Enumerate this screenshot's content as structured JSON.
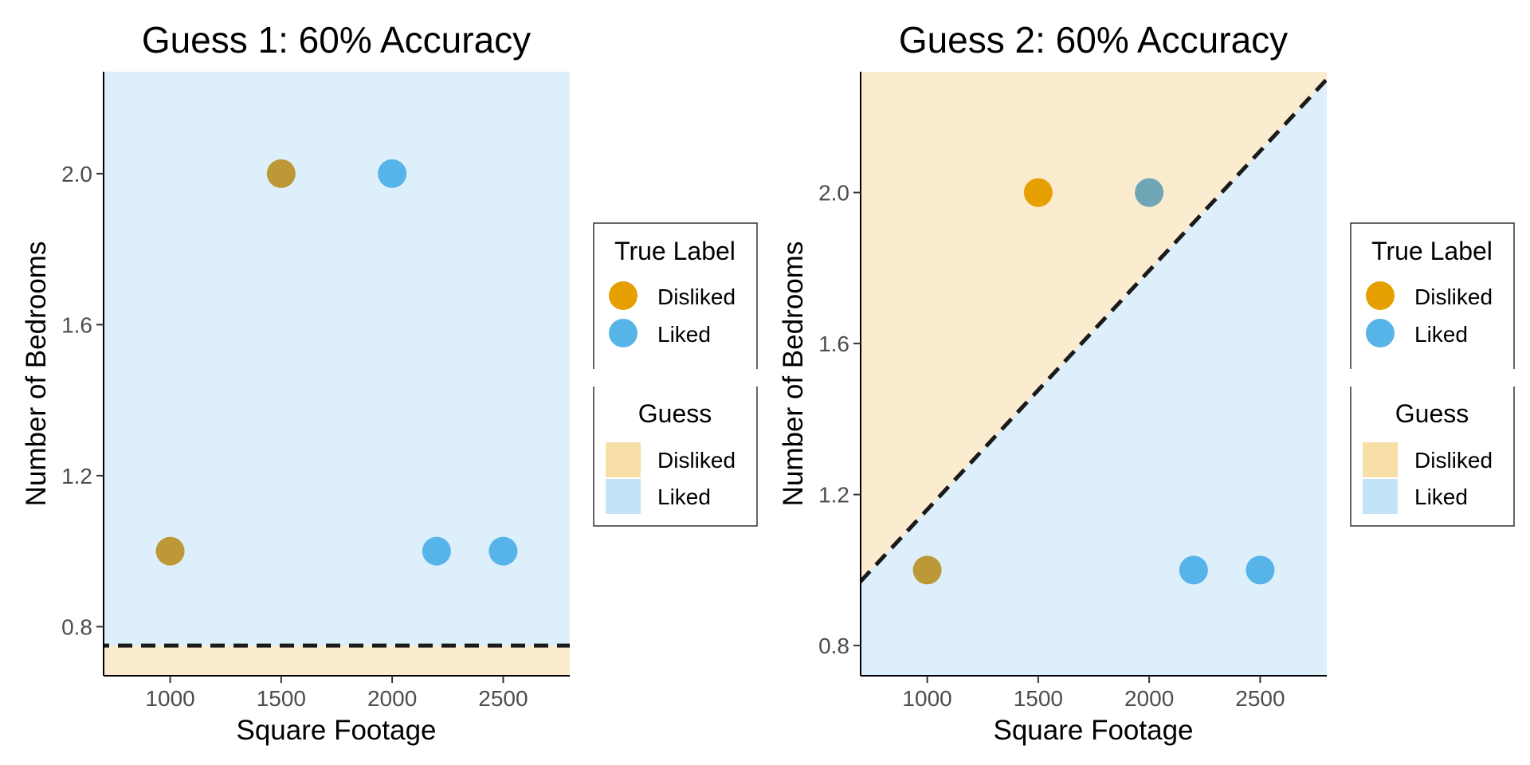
{
  "chart_data": [
    {
      "type": "scatter",
      "title": "Guess 1: 60% Accuracy",
      "xlabel": "Square Footage",
      "ylabel": "Number of Bedrooms",
      "xlim": [
        700,
        2800
      ],
      "ylim": [
        0.67,
        2.27
      ],
      "xticks": [
        1000,
        1500,
        2000,
        2500
      ],
      "yticks": [
        0.8,
        1.2,
        1.6,
        2.0
      ],
      "xtick_labels": [
        "1000",
        "1500",
        "2000",
        "2500"
      ],
      "ytick_labels": [
        "0.8",
        "1.2",
        "1.6",
        "2.0"
      ],
      "grid": false,
      "decision_boundary": {
        "style": "dashed",
        "color": "#1a1a1a",
        "points": [
          [
            700,
            0.75
          ],
          [
            2800,
            0.75
          ]
        ],
        "above_guess": "Liked",
        "below_guess": "Disliked"
      },
      "points": [
        {
          "x": 1000,
          "y": 1,
          "label": "Disliked",
          "guess": "Liked"
        },
        {
          "x": 1500,
          "y": 2,
          "label": "Disliked",
          "guess": "Liked"
        },
        {
          "x": 2000,
          "y": 2,
          "label": "Liked",
          "guess": "Liked"
        },
        {
          "x": 2200,
          "y": 1,
          "label": "Liked",
          "guess": "Liked"
        },
        {
          "x": 2500,
          "y": 1,
          "label": "Liked",
          "guess": "Liked"
        }
      ]
    },
    {
      "type": "scatter",
      "title": "Guess 2: 60% Accuracy",
      "xlabel": "Square Footage",
      "ylabel": "Number of Bedrooms",
      "xlim": [
        700,
        2800
      ],
      "ylim": [
        0.72,
        2.32
      ],
      "xticks": [
        1000,
        1500,
        2000,
        2500
      ],
      "yticks": [
        0.8,
        1.2,
        1.6,
        2.0
      ],
      "xtick_labels": [
        "1000",
        "1500",
        "2000",
        "2500"
      ],
      "ytick_labels": [
        "0.8",
        "1.2",
        "1.6",
        "2.0"
      ],
      "grid": false,
      "decision_boundary": {
        "style": "dashed",
        "color": "#1a1a1a",
        "points": [
          [
            700,
            0.97
          ],
          [
            2800,
            2.3
          ]
        ],
        "above_guess": "Disliked",
        "below_guess": "Liked"
      },
      "points": [
        {
          "x": 1000,
          "y": 1,
          "label": "Disliked",
          "guess": "Liked"
        },
        {
          "x": 1500,
          "y": 2,
          "label": "Disliked",
          "guess": "Disliked"
        },
        {
          "x": 2000,
          "y": 2,
          "label": "Liked",
          "guess": "Disliked"
        },
        {
          "x": 2200,
          "y": 1,
          "label": "Liked",
          "guess": "Liked"
        },
        {
          "x": 2500,
          "y": 1,
          "label": "Liked",
          "guess": "Liked"
        }
      ]
    }
  ],
  "legend": {
    "placement": "right",
    "true_label_title": "True Label",
    "guess_title": "Guess",
    "items": [
      "Disliked",
      "Liked"
    ]
  },
  "colors": {
    "disliked_point": "#e69f00",
    "liked_point": "#56b4e9",
    "disliked_region": "#fbecd0",
    "liked_region": "#ddeffb",
    "disliked_key": "#f7dfa7",
    "liked_key": "#c3e3f6",
    "boundary": "#1a1a1a"
  }
}
